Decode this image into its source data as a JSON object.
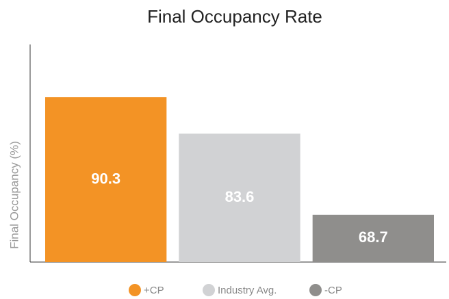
{
  "chart_data": {
    "type": "bar",
    "title": "Final Occupancy Rate",
    "y_label": "Final Occupancy (%)",
    "series": [
      {
        "name": "+CP",
        "color": "#f39325",
        "values": [
          90.3
        ]
      },
      {
        "name": "Industry Avg.",
        "color": "#d1d2d4",
        "values": [
          83.6
        ]
      },
      {
        "name": "-CP",
        "color": "#8f8e8c",
        "values": [
          68.7
        ]
      }
    ],
    "ylim": [
      60,
      100
    ]
  }
}
